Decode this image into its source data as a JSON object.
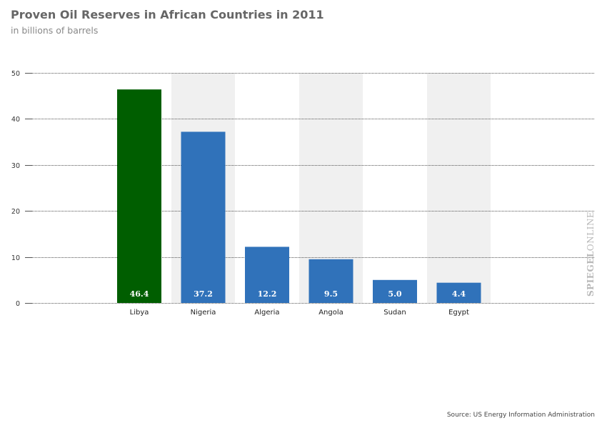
{
  "header": {
    "title": "Proven Oil Reserves in African Countries in 2011",
    "subtitle": "in billions of barrels"
  },
  "watermark": {
    "strong": "SPIEGEL",
    "light": "ONLINE"
  },
  "source": "Source: US Energy Information Administration",
  "colors": {
    "highlight": "#005e00",
    "bar": "#3072ba",
    "band": "#f0f0f0",
    "value_label": "#ffffff"
  },
  "chart_data": {
    "type": "bar",
    "title": "Proven Oil Reserves in African Countries in 2011",
    "subtitle": "in billions of barrels",
    "categories": [
      "Libya",
      "Nigeria",
      "Algeria",
      "Angola",
      "Sudan",
      "Egypt"
    ],
    "values": [
      46.4,
      37.2,
      12.2,
      9.5,
      5.0,
      4.4
    ],
    "value_labels": [
      "46.4",
      "37.2",
      "12.2",
      "9.5",
      "5.0",
      "4.4"
    ],
    "highlight_index": 0,
    "ylim": [
      0,
      50
    ],
    "yticks": [
      0,
      10,
      20,
      30,
      40,
      50
    ],
    "grid": true,
    "xlabel": "",
    "ylabel": ""
  }
}
